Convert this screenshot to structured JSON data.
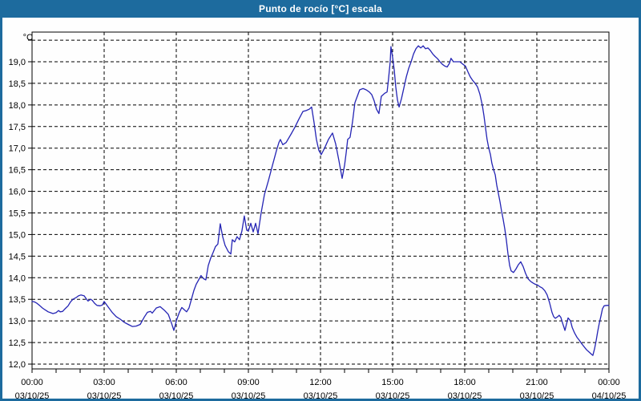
{
  "window": {
    "title": "Punto de rocío [°C] escala",
    "colors": {
      "titlebar": "#1d6b9e",
      "border": "#1d6b9e",
      "plot_frame": "#000000",
      "grid": "#000000",
      "label": "#000000"
    }
  },
  "chart_data": {
    "type": "line",
    "title": "Punto de rocío [°C] escala",
    "unit_label": "°C",
    "xlabel": "",
    "ylabel": "°C",
    "grid": "dashed",
    "legend": "none",
    "xlim_hours": [
      0,
      24
    ],
    "ylim": [
      11.88,
      19.69
    ],
    "y_grid_values": [
      12.0,
      12.5,
      13.0,
      13.5,
      14.0,
      14.5,
      15.0,
      15.5,
      16.0,
      16.5,
      17.0,
      17.5,
      18.0,
      18.5,
      19.0,
      19.5
    ],
    "y_tick_labels": [
      {
        "value": 19.0,
        "label": "19,0"
      },
      {
        "value": 18.5,
        "label": "18,5"
      },
      {
        "value": 18.0,
        "label": "18,0"
      },
      {
        "value": 17.5,
        "label": "17,5"
      },
      {
        "value": 17.0,
        "label": "17,0"
      },
      {
        "value": 16.5,
        "label": "16,5"
      },
      {
        "value": 16.0,
        "label": "16,0"
      },
      {
        "value": 15.5,
        "label": "15,5"
      },
      {
        "value": 15.0,
        "label": "15,0"
      },
      {
        "value": 14.5,
        "label": "14,5"
      },
      {
        "value": 14.0,
        "label": "14,0"
      },
      {
        "value": 13.5,
        "label": "13,5"
      },
      {
        "value": 13.0,
        "label": "13,0"
      },
      {
        "value": 12.5,
        "label": "12,5"
      },
      {
        "value": 12.0,
        "label": "12,0"
      }
    ],
    "x_ticks": [
      {
        "hour": 0,
        "time": "00:00",
        "date": "03/10/25"
      },
      {
        "hour": 3,
        "time": "03:00",
        "date": "03/10/25"
      },
      {
        "hour": 6,
        "time": "06:00",
        "date": "03/10/25"
      },
      {
        "hour": 9,
        "time": "09:00",
        "date": "03/10/25"
      },
      {
        "hour": 12,
        "time": "12:00",
        "date": "03/10/25"
      },
      {
        "hour": 15,
        "time": "15:00",
        "date": "03/10/25"
      },
      {
        "hour": 18,
        "time": "18:00",
        "date": "03/10/25"
      },
      {
        "hour": 21,
        "time": "21:00",
        "date": "03/10/25"
      },
      {
        "hour": 24,
        "time": "00:00",
        "date": "04/10/25"
      }
    ],
    "x_minor_tick_every_hours": 1,
    "series": [
      {
        "name": "Punto de rocío",
        "color": "#2424b4",
        "points": [
          [
            0.0,
            13.45
          ],
          [
            0.1,
            13.44
          ],
          [
            0.2,
            13.41
          ],
          [
            0.33,
            13.35
          ],
          [
            0.43,
            13.3
          ],
          [
            0.53,
            13.26
          ],
          [
            0.67,
            13.21
          ],
          [
            0.77,
            13.19
          ],
          [
            0.87,
            13.17
          ],
          [
            1.0,
            13.19
          ],
          [
            1.1,
            13.24
          ],
          [
            1.17,
            13.21
          ],
          [
            1.27,
            13.22
          ],
          [
            1.37,
            13.28
          ],
          [
            1.5,
            13.35
          ],
          [
            1.6,
            13.44
          ],
          [
            1.7,
            13.5
          ],
          [
            1.83,
            13.54
          ],
          [
            1.93,
            13.58
          ],
          [
            2.03,
            13.6
          ],
          [
            2.17,
            13.58
          ],
          [
            2.27,
            13.5
          ],
          [
            2.33,
            13.46
          ],
          [
            2.43,
            13.5
          ],
          [
            2.5,
            13.48
          ],
          [
            2.6,
            13.41
          ],
          [
            2.7,
            13.36
          ],
          [
            2.83,
            13.35
          ],
          [
            2.93,
            13.37
          ],
          [
            3.0,
            13.45
          ],
          [
            3.13,
            13.35
          ],
          [
            3.33,
            13.2
          ],
          [
            3.5,
            13.1
          ],
          [
            3.67,
            13.04
          ],
          [
            3.83,
            12.97
          ],
          [
            4.0,
            12.92
          ],
          [
            4.17,
            12.87
          ],
          [
            4.33,
            12.88
          ],
          [
            4.5,
            12.92
          ],
          [
            4.67,
            13.09
          ],
          [
            4.8,
            13.2
          ],
          [
            4.93,
            13.22
          ],
          [
            5.0,
            13.18
          ],
          [
            5.17,
            13.3
          ],
          [
            5.33,
            13.33
          ],
          [
            5.5,
            13.25
          ],
          [
            5.67,
            13.15
          ],
          [
            5.8,
            12.95
          ],
          [
            5.9,
            12.78
          ],
          [
            6.03,
            13.05
          ],
          [
            6.13,
            13.2
          ],
          [
            6.23,
            13.31
          ],
          [
            6.33,
            13.26
          ],
          [
            6.43,
            13.21
          ],
          [
            6.53,
            13.3
          ],
          [
            6.63,
            13.5
          ],
          [
            6.73,
            13.7
          ],
          [
            6.83,
            13.85
          ],
          [
            6.93,
            13.95
          ],
          [
            7.03,
            14.05
          ],
          [
            7.13,
            13.98
          ],
          [
            7.23,
            13.95
          ],
          [
            7.33,
            14.28
          ],
          [
            7.43,
            14.45
          ],
          [
            7.53,
            14.58
          ],
          [
            7.63,
            14.72
          ],
          [
            7.73,
            14.78
          ],
          [
            7.83,
            15.25
          ],
          [
            7.93,
            14.95
          ],
          [
            8.03,
            14.75
          ],
          [
            8.17,
            14.6
          ],
          [
            8.27,
            14.55
          ],
          [
            8.33,
            14.88
          ],
          [
            8.43,
            14.83
          ],
          [
            8.53,
            14.95
          ],
          [
            8.63,
            14.88
          ],
          [
            8.73,
            15.08
          ],
          [
            8.83,
            15.43
          ],
          [
            8.93,
            15.1
          ],
          [
            9.0,
            15.08
          ],
          [
            9.1,
            15.26
          ],
          [
            9.2,
            15.06
          ],
          [
            9.3,
            15.26
          ],
          [
            9.4,
            15.02
          ],
          [
            9.53,
            15.5
          ],
          [
            9.67,
            15.93
          ],
          [
            9.83,
            16.24
          ],
          [
            10.0,
            16.6
          ],
          [
            10.17,
            16.95
          ],
          [
            10.27,
            17.13
          ],
          [
            10.33,
            17.2
          ],
          [
            10.43,
            17.08
          ],
          [
            10.57,
            17.13
          ],
          [
            10.77,
            17.32
          ],
          [
            10.93,
            17.48
          ],
          [
            11.1,
            17.67
          ],
          [
            11.27,
            17.85
          ],
          [
            11.4,
            17.87
          ],
          [
            11.53,
            17.9
          ],
          [
            11.63,
            17.95
          ],
          [
            11.73,
            17.6
          ],
          [
            11.83,
            17.2
          ],
          [
            11.93,
            16.95
          ],
          [
            12.03,
            16.85
          ],
          [
            12.17,
            17.0
          ],
          [
            12.33,
            17.2
          ],
          [
            12.5,
            17.35
          ],
          [
            12.63,
            17.1
          ],
          [
            12.77,
            16.7
          ],
          [
            12.9,
            16.3
          ],
          [
            13.0,
            16.6
          ],
          [
            13.07,
            16.9
          ],
          [
            13.13,
            17.2
          ],
          [
            13.23,
            17.25
          ],
          [
            13.33,
            17.6
          ],
          [
            13.43,
            18.05
          ],
          [
            13.53,
            18.2
          ],
          [
            13.63,
            18.35
          ],
          [
            13.77,
            18.38
          ],
          [
            13.9,
            18.35
          ],
          [
            14.03,
            18.3
          ],
          [
            14.13,
            18.24
          ],
          [
            14.23,
            18.1
          ],
          [
            14.33,
            17.9
          ],
          [
            14.43,
            17.8
          ],
          [
            14.53,
            18.2
          ],
          [
            14.67,
            18.27
          ],
          [
            14.77,
            18.3
          ],
          [
            14.83,
            18.6
          ],
          [
            14.9,
            19.0
          ],
          [
            14.93,
            19.35
          ],
          [
            15.0,
            19.1
          ],
          [
            15.07,
            18.8
          ],
          [
            15.13,
            18.42
          ],
          [
            15.2,
            18.12
          ],
          [
            15.27,
            17.95
          ],
          [
            15.37,
            18.15
          ],
          [
            15.47,
            18.4
          ],
          [
            15.57,
            18.65
          ],
          [
            15.67,
            18.85
          ],
          [
            15.77,
            19.0
          ],
          [
            15.87,
            19.18
          ],
          [
            15.97,
            19.3
          ],
          [
            16.07,
            19.37
          ],
          [
            16.17,
            19.32
          ],
          [
            16.27,
            19.37
          ],
          [
            16.37,
            19.3
          ],
          [
            16.47,
            19.32
          ],
          [
            16.57,
            19.26
          ],
          [
            16.67,
            19.18
          ],
          [
            16.77,
            19.12
          ],
          [
            16.87,
            19.07
          ],
          [
            16.97,
            19.0
          ],
          [
            17.07,
            18.94
          ],
          [
            17.17,
            18.9
          ],
          [
            17.27,
            18.88
          ],
          [
            17.37,
            18.97
          ],
          [
            17.43,
            19.08
          ],
          [
            17.53,
            19.0
          ],
          [
            17.67,
            19.0
          ],
          [
            17.8,
            19.0
          ],
          [
            17.93,
            18.94
          ],
          [
            18.03,
            18.9
          ],
          [
            18.13,
            18.77
          ],
          [
            18.23,
            18.65
          ],
          [
            18.33,
            18.57
          ],
          [
            18.43,
            18.5
          ],
          [
            18.53,
            18.42
          ],
          [
            18.63,
            18.25
          ],
          [
            18.73,
            18.0
          ],
          [
            18.8,
            17.75
          ],
          [
            18.87,
            17.45
          ],
          [
            18.93,
            17.2
          ],
          [
            19.0,
            17.0
          ],
          [
            19.07,
            16.85
          ],
          [
            19.13,
            16.65
          ],
          [
            19.2,
            16.5
          ],
          [
            19.27,
            16.38
          ],
          [
            19.33,
            16.15
          ],
          [
            19.4,
            15.95
          ],
          [
            19.47,
            15.75
          ],
          [
            19.53,
            15.55
          ],
          [
            19.6,
            15.35
          ],
          [
            19.67,
            15.12
          ],
          [
            19.73,
            14.88
          ],
          [
            19.8,
            14.55
          ],
          [
            19.87,
            14.28
          ],
          [
            19.93,
            14.16
          ],
          [
            20.03,
            14.12
          ],
          [
            20.13,
            14.2
          ],
          [
            20.23,
            14.3
          ],
          [
            20.33,
            14.37
          ],
          [
            20.43,
            14.26
          ],
          [
            20.53,
            14.1
          ],
          [
            20.63,
            13.98
          ],
          [
            20.73,
            13.92
          ],
          [
            20.83,
            13.88
          ],
          [
            20.93,
            13.85
          ],
          [
            21.03,
            13.83
          ],
          [
            21.13,
            13.79
          ],
          [
            21.23,
            13.76
          ],
          [
            21.33,
            13.7
          ],
          [
            21.43,
            13.6
          ],
          [
            21.53,
            13.42
          ],
          [
            21.63,
            13.2
          ],
          [
            21.7,
            13.1
          ],
          [
            21.77,
            13.06
          ],
          [
            21.87,
            13.1
          ],
          [
            21.93,
            13.13
          ],
          [
            22.0,
            13.08
          ],
          [
            22.07,
            12.95
          ],
          [
            22.17,
            12.78
          ],
          [
            22.23,
            12.92
          ],
          [
            22.3,
            13.07
          ],
          [
            22.4,
            13.0
          ],
          [
            22.47,
            12.85
          ],
          [
            22.57,
            12.72
          ],
          [
            22.67,
            12.62
          ],
          [
            22.77,
            12.55
          ],
          [
            22.87,
            12.47
          ],
          [
            22.97,
            12.4
          ],
          [
            23.07,
            12.33
          ],
          [
            23.17,
            12.28
          ],
          [
            23.27,
            12.23
          ],
          [
            23.33,
            12.2
          ],
          [
            23.4,
            12.35
          ],
          [
            23.47,
            12.55
          ],
          [
            23.53,
            12.75
          ],
          [
            23.6,
            12.95
          ],
          [
            23.67,
            13.12
          ],
          [
            23.73,
            13.28
          ],
          [
            23.8,
            13.35
          ],
          [
            23.9,
            13.36
          ],
          [
            24.0,
            13.36
          ]
        ]
      }
    ]
  }
}
